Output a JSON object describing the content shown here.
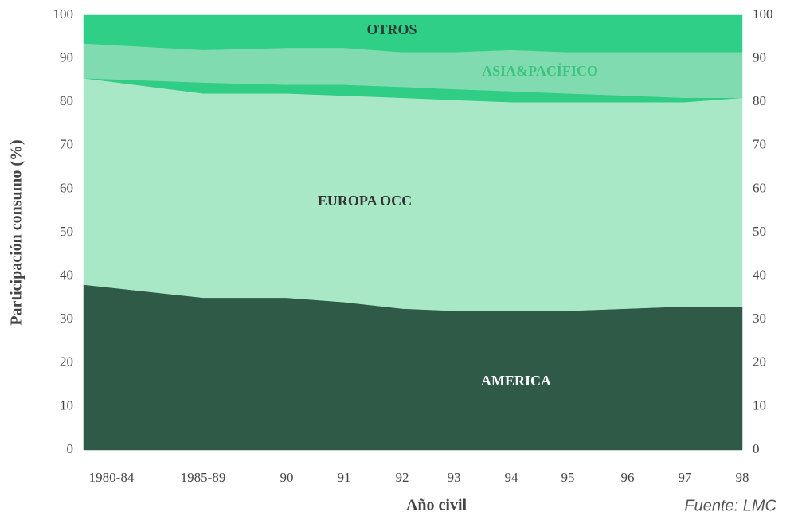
{
  "chart_data": {
    "type": "stacked_area",
    "x_label": "Año civil",
    "y_label": "Participación consumo (%)",
    "source": "Fuente: LMC",
    "categories": [
      "1980-84",
      "1985-89",
      "90",
      "91",
      "92",
      "93",
      "94",
      "95",
      "96",
      "97",
      "98"
    ],
    "ylim": [
      0,
      100
    ],
    "yticks": [
      0,
      10,
      20,
      30,
      40,
      50,
      60,
      70,
      80,
      90,
      100
    ],
    "y2lim": [
      0,
      100
    ],
    "y2ticks": [
      0,
      10,
      20,
      30,
      40,
      50,
      60,
      70,
      80,
      90,
      100
    ],
    "series": [
      {
        "name": "AMERICA",
        "color": "#2f5a48",
        "values": [
          38,
          35,
          35,
          34,
          32.5,
          32,
          32,
          32,
          32.5,
          33,
          33
        ]
      },
      {
        "name": "EUROPA OCC",
        "color": "#a8e8c6",
        "values": [
          47.5,
          47,
          47,
          47.5,
          48.5,
          48.5,
          48,
          48,
          47.5,
          47,
          48
        ]
      },
      {
        "color": "#2fcd85",
        "values": [
          0,
          2.5,
          2,
          2.5,
          2.5,
          2.5,
          2.5,
          2,
          1.5,
          1,
          0
        ]
      },
      {
        "name": "ASIA&PACÍFICO",
        "color": "#80dcb0",
        "values": [
          8,
          7.5,
          8.5,
          8.5,
          8,
          8.5,
          9.5,
          9.5,
          10,
          10.5,
          10.5
        ]
      },
      {
        "name": "OTROS",
        "color": "#30cf87",
        "values": [
          6.5,
          8,
          7.5,
          7.5,
          8.5,
          8.5,
          8,
          8.5,
          8.5,
          8.5,
          8.5
        ]
      }
    ]
  }
}
